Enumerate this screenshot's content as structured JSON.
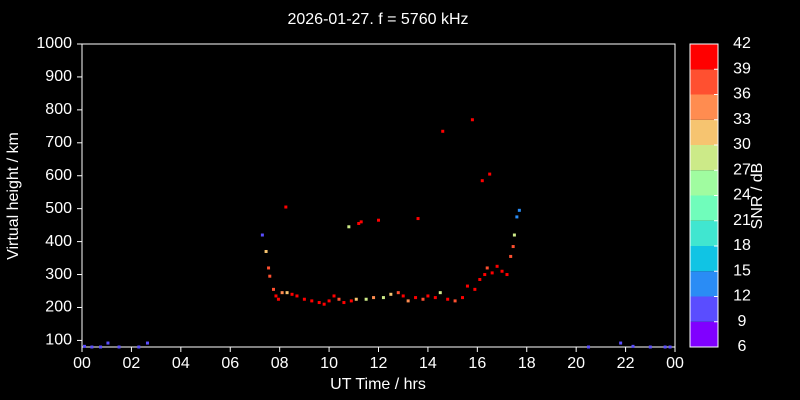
{
  "chart_data": {
    "type": "scatter",
    "title": "2026-01-27. f = 5760 kHz",
    "x_label": "UT Time / hrs",
    "y_label": "Virtual height / km",
    "xlim": [
      0,
      24
    ],
    "xticks": [
      {
        "value": 0,
        "label": "00"
      },
      {
        "value": 2,
        "label": "02"
      },
      {
        "value": 4,
        "label": "04"
      },
      {
        "value": 6,
        "label": "06"
      },
      {
        "value": 8,
        "label": "08"
      },
      10,
      12,
      14,
      16,
      18,
      20,
      22,
      {
        "value": 24,
        "label": "00"
      }
    ],
    "ylim": [
      80,
      1000
    ],
    "yticks": [
      100,
      200,
      300,
      400,
      500,
      600,
      700,
      800,
      900,
      1000
    ],
    "x": [
      0.1,
      0.4,
      0.75,
      1.05,
      1.5,
      2.3,
      2.65,
      7.3,
      7.45,
      7.55,
      7.6,
      7.75,
      7.85,
      7.95,
      8.1,
      8.25,
      8.3,
      8.5,
      8.7,
      9.0,
      9.3,
      9.6,
      9.8,
      10.0,
      10.2,
      10.4,
      10.6,
      10.8,
      10.9,
      11.1,
      11.2,
      11.3,
      11.5,
      11.8,
      12.0,
      12.2,
      12.5,
      12.8,
      13.0,
      13.2,
      13.5,
      13.6,
      13.8,
      14.0,
      14.3,
      14.5,
      14.6,
      14.8,
      15.1,
      15.4,
      15.6,
      15.8,
      15.9,
      16.1,
      16.2,
      16.3,
      16.4,
      16.5,
      16.6,
      16.8,
      17.0,
      17.2,
      17.35,
      17.45,
      17.5,
      17.6,
      17.7,
      20.5,
      21.8,
      22.3,
      23.0,
      23.6,
      23.8
    ],
    "values": [
      82,
      80,
      80,
      92,
      80,
      80,
      92,
      420,
      370,
      320,
      295,
      255,
      235,
      225,
      245,
      505,
      245,
      240,
      235,
      225,
      220,
      215,
      210,
      220,
      235,
      225,
      215,
      445,
      220,
      225,
      455,
      460,
      225,
      230,
      465,
      230,
      240,
      245,
      235,
      220,
      230,
      470,
      225,
      235,
      230,
      245,
      735,
      225,
      220,
      230,
      265,
      770,
      255,
      285,
      585,
      300,
      320,
      605,
      305,
      325,
      310,
      300,
      355,
      385,
      420,
      475,
      495,
      80,
      92,
      82,
      80,
      80,
      80
    ],
    "snr": [
      10,
      10,
      10,
      10,
      10,
      10,
      10,
      11,
      30,
      38,
      38,
      36,
      40,
      40,
      33,
      39,
      30,
      40,
      40,
      40,
      40,
      40,
      39,
      40,
      40,
      36,
      40,
      28,
      40,
      30,
      39,
      40,
      28,
      33,
      40,
      28,
      30,
      36,
      39,
      33,
      40,
      40,
      36,
      40,
      39,
      28,
      40,
      40,
      38,
      40,
      40,
      40,
      40,
      40,
      39,
      40,
      36,
      39,
      40,
      40,
      40,
      40,
      38,
      37,
      28,
      12,
      12,
      9,
      10,
      10,
      10,
      10,
      10
    ],
    "colorbar": {
      "label": "SNR / dB",
      "lim": [
        6,
        42
      ],
      "ticks": [
        6,
        9,
        12,
        15,
        18,
        21,
        24,
        27,
        30,
        33,
        36,
        39,
        42
      ],
      "colors": [
        "#8000ff",
        "#5a4dff",
        "#2a8cf5",
        "#10c4e4",
        "#40e6d0",
        "#70fdbb",
        "#a0fca0",
        "#ccea88",
        "#f6c470",
        "#ff8c50",
        "#ff5030",
        "#ff0000"
      ]
    }
  }
}
